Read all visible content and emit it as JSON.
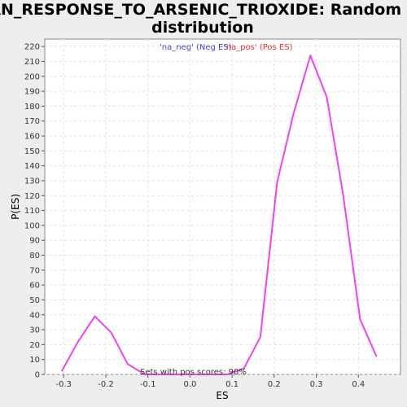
{
  "chart_data": {
    "type": "line",
    "title_line1": "KAN_RESPONSE_TO_ARSENIC_TRIOXIDE: Random ES",
    "title_line2": "distribution",
    "xlabel": "ES",
    "ylabel": "P(ES)",
    "xlim": [
      -0.345,
      0.5
    ],
    "ylim": [
      0,
      225
    ],
    "xticks": [
      -0.3,
      -0.2,
      -0.1,
      0.0,
      0.1,
      0.2,
      0.3,
      0.4
    ],
    "xtick_labels": [
      "-0.3",
      "-0.2",
      "-0.1",
      "0.0",
      "0.1",
      "0.2",
      "0.3",
      "0.4"
    ],
    "yticks": [
      0,
      10,
      20,
      30,
      40,
      50,
      60,
      70,
      80,
      90,
      100,
      110,
      120,
      130,
      140,
      150,
      160,
      170,
      180,
      190,
      200,
      210,
      220
    ],
    "grid": true,
    "legend": [
      {
        "label": "'na_neg' (Neg ES)",
        "color": "#4444dd"
      },
      {
        "label": "'na_pos' (Pos ES)",
        "color": "#dd3333"
      }
    ],
    "annotation": "Sets with pos scores: 90%",
    "series": [
      {
        "color": "#ee44ee",
        "x": [
          -0.305,
          -0.266,
          -0.226,
          -0.187,
          -0.148,
          -0.108,
          -0.069,
          -0.029,
          0.01,
          0.049,
          0.089,
          0.128,
          0.167,
          0.207,
          0.246,
          0.286,
          0.325,
          0.364,
          0.404,
          0.443
        ],
        "y": [
          2,
          22,
          39,
          28,
          7,
          0,
          0,
          0,
          0,
          0,
          0,
          4,
          25,
          129,
          175,
          214,
          186,
          120,
          37,
          12
        ]
      }
    ]
  }
}
